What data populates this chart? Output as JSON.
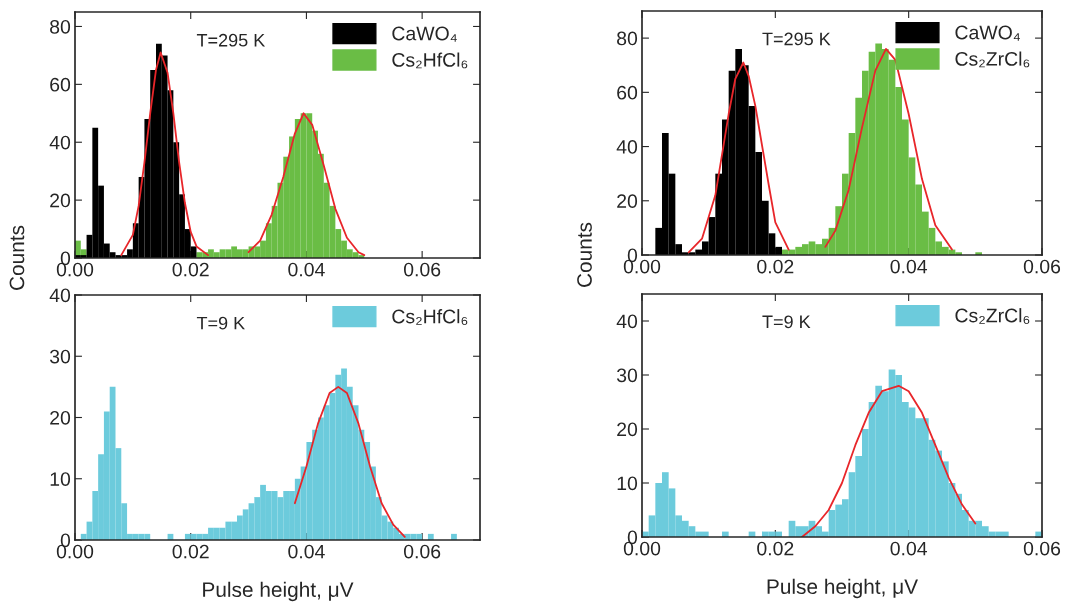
{
  "chart_data": [
    {
      "type": "histogram",
      "ylabel": "Counts",
      "annotations": [
        "T=295 K"
      ],
      "legend": "top right",
      "bins": [
        0,
        0.001,
        0.002,
        0.003,
        0.004,
        0.005,
        0.006,
        0.007,
        0.008,
        0.009,
        0.01,
        0.011,
        0.012,
        0.013,
        0.014,
        0.015,
        0.016,
        0.017,
        0.018,
        0.019,
        0.02,
        0.021,
        0.022,
        0.023,
        0.024,
        0.025,
        0.026,
        0.027,
        0.028,
        0.029,
        0.03,
        0.031,
        0.032,
        0.033,
        0.034,
        0.035,
        0.036,
        0.037,
        0.038,
        0.039,
        0.04,
        0.041,
        0.042,
        0.043,
        0.044,
        0.045,
        0.046,
        0.047,
        0.048,
        0.049,
        0.05
      ],
      "series": [
        {
          "name": "CaWO₄",
          "color": "#000000",
          "values": [
            1,
            1,
            8,
            45,
            25,
            5,
            2,
            1,
            1,
            3,
            12,
            28,
            48,
            65,
            74,
            70,
            58,
            40,
            22,
            10,
            4,
            0,
            0,
            0,
            0,
            0,
            0,
            0,
            0,
            0,
            0,
            0,
            0,
            0,
            0,
            0,
            0,
            0,
            0,
            0,
            0,
            0,
            0,
            0,
            0,
            0,
            0,
            0,
            0,
            0
          ]
        },
        {
          "name": "Cs₂HfCl₆",
          "color": "#6abd45",
          "values": [
            6,
            3,
            null,
            null,
            null,
            null,
            null,
            null,
            null,
            null,
            null,
            null,
            null,
            null,
            null,
            null,
            null,
            null,
            null,
            null,
            null,
            2,
            2,
            3,
            2,
            3,
            3,
            4,
            3,
            3,
            4,
            4,
            6,
            12,
            18,
            26,
            35,
            42,
            48,
            50,
            50,
            44,
            36,
            26,
            18,
            10,
            6,
            3,
            2,
            1
          ]
        },
        {
          "type": "line",
          "color": "#e8262a",
          "x": [
            0.008,
            0.01,
            0.011,
            0.012,
            0.013,
            0.014,
            0.0148,
            0.016,
            0.017,
            0.018,
            0.019,
            0.02,
            0.021,
            0.023
          ],
          "values": [
            1,
            8,
            18,
            33,
            50,
            65,
            71,
            64,
            50,
            33,
            19,
            9,
            4,
            1
          ]
        },
        {
          "type": "line",
          "color": "#e8262a",
          "x": [
            0.03,
            0.032,
            0.034,
            0.036,
            0.038,
            0.0395,
            0.041,
            0.043,
            0.045,
            0.047,
            0.049,
            0.05
          ],
          "values": [
            2,
            6,
            15,
            28,
            43,
            50,
            46,
            32,
            17,
            7,
            2,
            1
          ]
        }
      ],
      "xlim": [
        0,
        0.07
      ],
      "ylim": [
        0,
        85
      ],
      "xticks": [
        {
          "value": 0,
          "label": "0.00"
        },
        {
          "value": 0.02,
          "label": "0.02"
        },
        {
          "value": 0.04,
          "label": "0.04"
        },
        {
          "value": 0.06,
          "label": "0.06"
        }
      ],
      "yticks": [
        0,
        20,
        40,
        60,
        80
      ]
    },
    {
      "type": "histogram",
      "ylabel": "Counts",
      "annotations": [
        "T=295 K"
      ],
      "legend": "top right",
      "bins": [
        0,
        0.001,
        0.002,
        0.003,
        0.004,
        0.005,
        0.006,
        0.007,
        0.008,
        0.009,
        0.01,
        0.011,
        0.012,
        0.013,
        0.014,
        0.015,
        0.016,
        0.017,
        0.018,
        0.019,
        0.02,
        0.021,
        0.022,
        0.023,
        0.024,
        0.025,
        0.026,
        0.027,
        0.028,
        0.029,
        0.03,
        0.031,
        0.032,
        0.033,
        0.034,
        0.035,
        0.036,
        0.037,
        0.038,
        0.039,
        0.04,
        0.041,
        0.042,
        0.043,
        0.044,
        0.045,
        0.046,
        0.047,
        0.048,
        0.049,
        0.05,
        0.051
      ],
      "series": [
        {
          "name": "CaWO₄",
          "color": "#000000",
          "values": [
            0,
            0,
            10,
            45,
            30,
            4,
            1,
            1,
            2,
            5,
            14,
            30,
            50,
            68,
            76,
            70,
            55,
            38,
            20,
            8,
            3,
            0,
            0,
            0,
            0,
            0,
            0,
            0,
            0,
            0,
            0,
            0,
            0,
            0,
            0,
            0,
            0,
            0,
            0,
            0,
            0,
            0,
            0,
            0,
            0,
            0,
            0,
            0,
            0,
            0,
            0
          ]
        },
        {
          "name": "Cs₂ZrCl₆",
          "color": "#6abd45",
          "values": [
            0,
            0,
            null,
            null,
            null,
            null,
            null,
            null,
            null,
            null,
            null,
            null,
            null,
            null,
            null,
            null,
            null,
            null,
            null,
            null,
            null,
            2,
            2,
            3,
            4,
            5,
            4,
            6,
            10,
            18,
            30,
            45,
            58,
            68,
            75,
            78,
            76,
            72,
            62,
            50,
            36,
            26,
            16,
            10,
            5,
            3,
            2,
            1,
            0,
            0,
            1
          ]
        },
        {
          "type": "line",
          "color": "#e8262a",
          "x": [
            0.007,
            0.009,
            0.011,
            0.013,
            0.014,
            0.0152,
            0.016,
            0.017,
            0.019,
            0.02,
            0.022
          ],
          "values": [
            1,
            6,
            22,
            52,
            65,
            71,
            66,
            55,
            26,
            12,
            2
          ]
        },
        {
          "type": "line",
          "color": "#e8262a",
          "x": [
            0.0275,
            0.029,
            0.031,
            0.033,
            0.035,
            0.0366,
            0.038,
            0.04,
            0.042,
            0.044,
            0.0465
          ],
          "values": [
            3,
            9,
            24,
            47,
            68,
            76,
            72,
            52,
            28,
            11,
            2
          ]
        }
      ],
      "xlim": [
        0,
        0.06
      ],
      "ylim": [
        0,
        90
      ],
      "xticks": [
        {
          "value": 0,
          "label": "0.00"
        },
        {
          "value": 0.02,
          "label": "0.02"
        },
        {
          "value": 0.04,
          "label": "0.04"
        },
        {
          "value": 0.06,
          "label": "0.06"
        }
      ],
      "yticks": [
        0,
        20,
        40,
        60,
        80
      ]
    },
    {
      "type": "histogram",
      "xlabel": "Pulse height, μV",
      "annotations": [
        "T=9 K"
      ],
      "legend": "top right",
      "bins": [
        0,
        0.001,
        0.002,
        0.003,
        0.004,
        0.005,
        0.006,
        0.007,
        0.008,
        0.009,
        0.01,
        0.011,
        0.012,
        0.013,
        0.014,
        0.015,
        0.016,
        0.017,
        0.018,
        0.019,
        0.02,
        0.021,
        0.022,
        0.023,
        0.024,
        0.025,
        0.026,
        0.027,
        0.028,
        0.029,
        0.03,
        0.031,
        0.032,
        0.033,
        0.034,
        0.035,
        0.036,
        0.037,
        0.038,
        0.039,
        0.04,
        0.041,
        0.042,
        0.043,
        0.044,
        0.045,
        0.046,
        0.047,
        0.048,
        0.049,
        0.05,
        0.051,
        0.052,
        0.053,
        0.054,
        0.055,
        0.056,
        0.057,
        0.058,
        0.059,
        0.06,
        0.061,
        0.062,
        0.063,
        0.064,
        0.065,
        0.066
      ],
      "series": [
        {
          "name": "Cs₂HfCl₆",
          "color": "#6ccbdc",
          "values": [
            0,
            1,
            3,
            8,
            14,
            21,
            25,
            15,
            6,
            1,
            1,
            1,
            1,
            0,
            0,
            0,
            1,
            0,
            0,
            1,
            1,
            1,
            1,
            2,
            2,
            2,
            3,
            3,
            4,
            5,
            6,
            7,
            9,
            8,
            8,
            7,
            8,
            8,
            10,
            12,
            16,
            18,
            20,
            22,
            24,
            27,
            28,
            25,
            22,
            18,
            16,
            12,
            7,
            4,
            3,
            2,
            1,
            1,
            1,
            1,
            0,
            1,
            0,
            0,
            0,
            1
          ]
        },
        {
          "type": "line",
          "color": "#e8262a",
          "x": [
            0.038,
            0.04,
            0.042,
            0.044,
            0.0455,
            0.047,
            0.049,
            0.051,
            0.053,
            0.055,
            0.057
          ],
          "values": [
            6,
            12,
            19,
            24,
            25,
            24,
            19,
            12,
            6,
            2.5,
            0.5
          ]
        }
      ],
      "xlim": [
        0,
        0.07
      ],
      "ylim": [
        0,
        40
      ],
      "xticks": [
        {
          "value": 0,
          "label": "0.00"
        },
        {
          "value": 0.02,
          "label": "0.02"
        },
        {
          "value": 0.04,
          "label": "0.04"
        },
        {
          "value": 0.06,
          "label": "0.06"
        }
      ],
      "yticks": [
        0,
        10,
        20,
        30,
        40
      ]
    },
    {
      "type": "histogram",
      "xlabel": "Pulse height, μV",
      "annotations": [
        "T=9 K"
      ],
      "legend": "top right",
      "bins": [
        0,
        0.001,
        0.002,
        0.003,
        0.004,
        0.005,
        0.006,
        0.007,
        0.008,
        0.009,
        0.01,
        0.011,
        0.012,
        0.013,
        0.014,
        0.015,
        0.016,
        0.017,
        0.018,
        0.019,
        0.02,
        0.021,
        0.022,
        0.023,
        0.024,
        0.025,
        0.026,
        0.027,
        0.028,
        0.029,
        0.03,
        0.031,
        0.032,
        0.033,
        0.034,
        0.035,
        0.036,
        0.037,
        0.038,
        0.039,
        0.04,
        0.041,
        0.042,
        0.043,
        0.044,
        0.045,
        0.046,
        0.047,
        0.048,
        0.049,
        0.05,
        0.051,
        0.052,
        0.053,
        0.054,
        0.055,
        0.056,
        0.057,
        0.058,
        0.059,
        0.06
      ],
      "series": [
        {
          "name": "Cs₂ZrCl₆",
          "color": "#6ccbdc",
          "values": [
            1,
            4,
            10,
            12,
            9,
            4,
            3,
            2,
            1,
            1,
            0,
            0,
            1,
            0,
            0,
            0,
            1,
            0,
            1,
            1,
            1,
            0,
            3,
            2,
            2,
            3,
            2,
            1,
            5,
            6,
            7,
            12,
            15,
            20,
            25,
            28,
            27,
            31,
            30,
            25,
            24,
            22,
            22,
            18,
            16,
            14,
            10,
            8,
            5,
            3,
            3,
            2,
            1,
            1,
            1,
            0,
            0,
            0,
            0,
            1
          ]
        },
        {
          "type": "line",
          "color": "#e8262a",
          "x": [
            0.024,
            0.026,
            0.028,
            0.03,
            0.032,
            0.034,
            0.036,
            0.0385,
            0.04,
            0.042,
            0.044,
            0.046,
            0.048,
            0.05
          ],
          "values": [
            0,
            2,
            5,
            10,
            17,
            23,
            27,
            28,
            27,
            23,
            17,
            11,
            6,
            2.5
          ]
        }
      ],
      "xlim": [
        0,
        0.06
      ],
      "ylim": [
        0,
        45
      ],
      "xticks": [
        {
          "value": 0,
          "label": "0.00"
        },
        {
          "value": 0.02,
          "label": "0.02"
        },
        {
          "value": 0.04,
          "label": "0.04"
        },
        {
          "value": 0.06,
          "label": "0.06"
        }
      ],
      "yticks": [
        0,
        10,
        20,
        30,
        40
      ]
    }
  ]
}
